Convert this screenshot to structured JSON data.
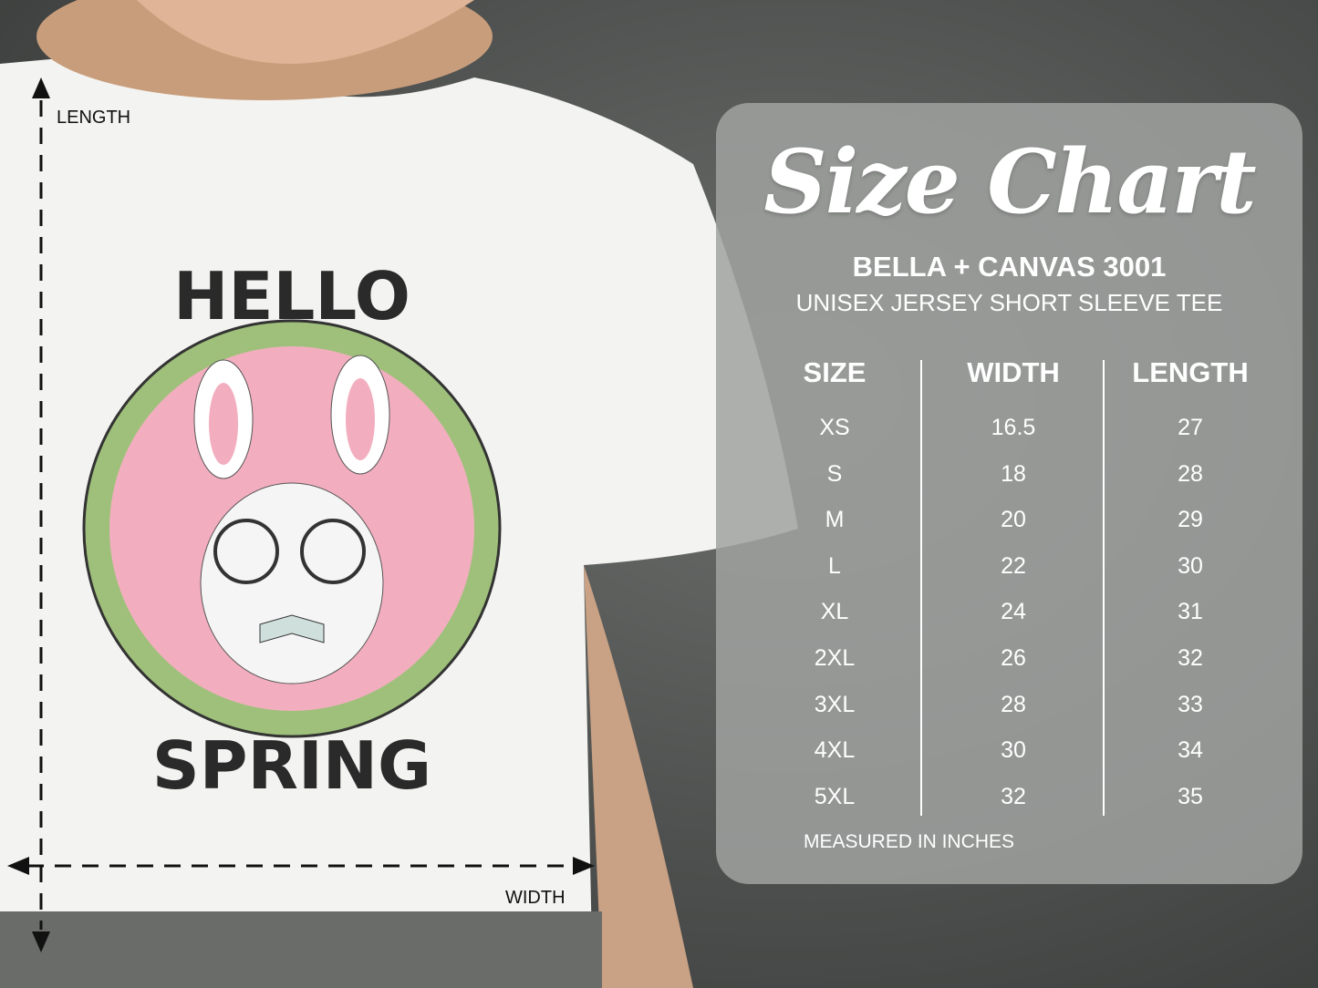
{
  "measure_labels": {
    "length": "LENGTH",
    "width": "WIDTH"
  },
  "design": {
    "top_text": "HELLO",
    "bottom_text": "SPRING"
  },
  "chart": {
    "title": "Size Chart",
    "brand": "BELLA + CANVAS 3001",
    "subtitle": "UNISEX JERSEY SHORT SLEEVE TEE",
    "headers": [
      "SIZE",
      "WIDTH",
      "LENGTH"
    ],
    "sizes": [
      "XS",
      "S",
      "M",
      "L",
      "XL",
      "2XL",
      "3XL",
      "4XL",
      "5XL"
    ],
    "widths": [
      "16.5",
      "18",
      "20",
      "22",
      "24",
      "26",
      "28",
      "30",
      "32"
    ],
    "lengths": [
      "27",
      "28",
      "29",
      "30",
      "31",
      "32",
      "33",
      "34",
      "35"
    ],
    "note": "MEASURED IN INCHES"
  },
  "colors": {
    "pink": "#f2aebf",
    "green": "#9fc07a",
    "panel": "#a0a2a0"
  }
}
